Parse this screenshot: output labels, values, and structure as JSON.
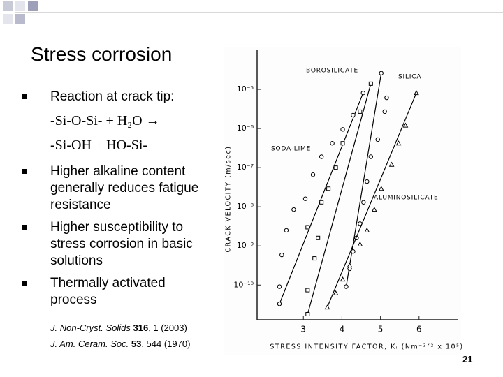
{
  "slide": {
    "title": "Stress corrosion",
    "bullets": [
      "Reaction at crack tip:",
      "Higher alkaline content generally reduces fatigue resistance",
      "Higher susceptibility to stress corrosion in basic solutions",
      "Thermally activated process"
    ],
    "equation": [
      "-Si-O-Si- + H₂O →",
      "-Si-OH + HO-Si-"
    ],
    "references": [
      {
        "journal": "J. Non-Cryst. Solids",
        "volume": "316",
        "rest": ", 1 (2003)"
      },
      {
        "journal": "J. Am. Ceram. Soc.",
        "volume": "53",
        "rest": ", 544 (1970)"
      }
    ],
    "page_number": "21"
  },
  "chart_data": {
    "type": "scatter",
    "ylabel": "CRACK VELOCITY (m/sec)",
    "xlabel": "STRESS INTENSITY FACTOR, Kᵢ (Nm⁻³ᐟ² x 10⁵)",
    "xlim": [
      1.8,
      7.0
    ],
    "xticks": [
      3,
      4,
      5,
      6
    ],
    "ylim": [
      1.8e-11,
      0.0001
    ],
    "log_y": true,
    "yticks": [
      {
        "value": 1e-05,
        "label": "10⁻⁵"
      },
      {
        "value": 1e-06,
        "label": "10⁻⁶"
      },
      {
        "value": 1e-07,
        "label": "10⁻⁷"
      },
      {
        "value": 1e-08,
        "label": "10⁻⁸"
      },
      {
        "value": 1e-09,
        "label": "10⁻⁹"
      },
      {
        "value": 1e-10,
        "label": "10⁻¹⁰"
      }
    ],
    "series": [
      {
        "name": "BOROSILICATE",
        "color": "#000000",
        "marker": "circle",
        "x": [
          4.55,
          4.29,
          4.02,
          3.75,
          3.47,
          3.25,
          3.05,
          2.75,
          2.56,
          2.44,
          2.38,
          2.38
        ],
        "values": [
          8.1e-06,
          2.2e-06,
          9.5e-07,
          4.2e-07,
          1.9e-07,
          6.6e-08,
          1.6e-08,
          8.5e-09,
          2.5e-09,
          5.9e-10,
          9.1e-11,
          3.3e-11
        ]
      },
      {
        "name": "SILICA",
        "color": "#000000",
        "marker": "circle",
        "x": [
          5.02,
          5.16,
          5.11,
          4.93,
          4.75,
          4.65,
          4.56,
          4.47,
          4.38,
          4.29,
          4.2,
          4.11
        ],
        "values": [
          2.6e-05,
          6.1e-06,
          2.7e-06,
          5.2e-07,
          1.9e-07,
          4.4e-08,
          1.3e-08,
          3.7e-09,
          1.6e-09,
          7.2e-10,
          2.6e-10,
          9.1e-11
        ]
      },
      {
        "name": "SODA-LIME",
        "color": "#000000",
        "marker": "square",
        "x": [
          4.75,
          4.47,
          4.02,
          3.84,
          3.65,
          3.47,
          3.11,
          3.38,
          3.29,
          3.11,
          3.11
        ],
        "values": [
          1.4e-05,
          2.7e-06,
          4.2e-07,
          1e-07,
          2.9e-08,
          1.3e-08,
          3e-09,
          1.6e-09,
          4.8e-10,
          7.4e-11,
          1.8e-11
        ]
      },
      {
        "name": "ALUMINOSILICATE",
        "color": "#000000",
        "marker": "triangle",
        "x": [
          5.93,
          5.65,
          5.47,
          5.29,
          5.02,
          4.84,
          4.65,
          4.47,
          4.2,
          4.02,
          3.84,
          3.62
        ],
        "values": [
          8.1e-06,
          1.2e-06,
          4.2e-07,
          1.2e-07,
          2.9e-08,
          8.5e-09,
          2.5e-09,
          1.1e-09,
          3.2e-10,
          1.4e-10,
          6.2e-11,
          2.7e-11
        ]
      }
    ]
  }
}
